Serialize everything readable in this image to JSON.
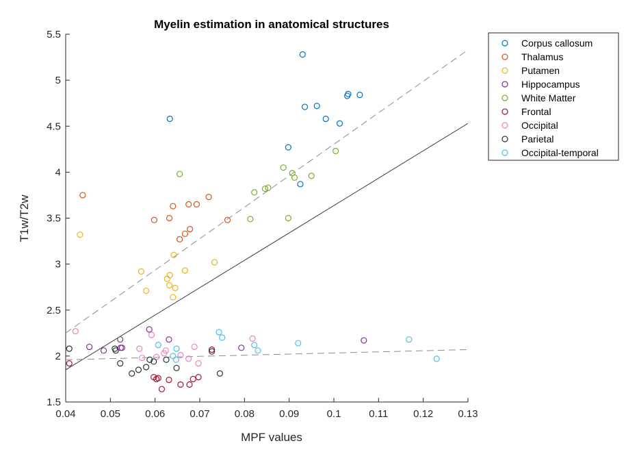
{
  "chart_data": {
    "type": "scatter",
    "title": "Myelin estimation in anatomical structures",
    "xlabel": "MPF values",
    "ylabel": "T1w/T2w",
    "xlim": [
      0.04,
      0.13
    ],
    "ylim": [
      1.5,
      5.5
    ],
    "xticks": [
      "0.04",
      "0.05",
      "0.06",
      "0.07",
      "0.08",
      "0.09",
      "0.1",
      "0.11",
      "0.12",
      "0.13"
    ],
    "yticks": [
      "1.5",
      "2",
      "2.5",
      "3",
      "3.5",
      "4",
      "4.5",
      "5",
      "5.5"
    ],
    "grid": false,
    "legend_position": "outside-top-right",
    "series": [
      {
        "name": "Corpus callosum",
        "color": "#0072BD",
        "points": [
          [
            0.0633,
            4.58
          ],
          [
            0.093,
            5.28
          ],
          [
            0.0898,
            4.27
          ],
          [
            0.0925,
            3.87
          ],
          [
            0.0935,
            4.71
          ],
          [
            0.0962,
            4.72
          ],
          [
            0.0982,
            4.58
          ],
          [
            0.1013,
            4.53
          ],
          [
            0.103,
            4.83
          ],
          [
            0.1032,
            4.85
          ],
          [
            0.1058,
            4.84
          ]
        ]
      },
      {
        "name": "Thalamus",
        "color": "#D95319",
        "points": [
          [
            0.0438,
            3.75
          ],
          [
            0.0598,
            3.48
          ],
          [
            0.0632,
            3.5
          ],
          [
            0.064,
            3.63
          ],
          [
            0.0655,
            3.27
          ],
          [
            0.0667,
            3.33
          ],
          [
            0.0675,
            3.65
          ],
          [
            0.0678,
            3.38
          ],
          [
            0.0693,
            3.65
          ],
          [
            0.072,
            3.73
          ],
          [
            0.0762,
            3.48
          ]
        ]
      },
      {
        "name": "Putamen",
        "color": "#EDB120",
        "points": [
          [
            0.0432,
            3.32
          ],
          [
            0.0569,
            2.92
          ],
          [
            0.058,
            2.71
          ],
          [
            0.0627,
            2.84
          ],
          [
            0.0632,
            2.77
          ],
          [
            0.0633,
            2.88
          ],
          [
            0.064,
            2.64
          ],
          [
            0.0642,
            3.1
          ],
          [
            0.0645,
            2.74
          ],
          [
            0.0667,
            2.93
          ],
          [
            0.0733,
            3.02
          ]
        ]
      },
      {
        "name": "Hippocampus",
        "color": "#7E2F8E",
        "points": [
          [
            0.0453,
            2.1
          ],
          [
            0.0485,
            2.06
          ],
          [
            0.0522,
            2.18
          ],
          [
            0.0523,
            2.09
          ],
          [
            0.0526,
            2.09
          ],
          [
            0.0587,
            2.29
          ],
          [
            0.0631,
            2.18
          ],
          [
            0.0793,
            2.09
          ],
          [
            0.1067,
            2.17
          ]
        ]
      },
      {
        "name": "White Matter",
        "color": "#77AC30",
        "points": [
          [
            0.0655,
            3.98
          ],
          [
            0.0813,
            3.49
          ],
          [
            0.0822,
            3.78
          ],
          [
            0.0846,
            3.82
          ],
          [
            0.0853,
            3.83
          ],
          [
            0.0887,
            4.05
          ],
          [
            0.0898,
            3.5
          ],
          [
            0.0907,
            3.99
          ],
          [
            0.0912,
            3.94
          ],
          [
            0.095,
            3.96
          ],
          [
            0.1004,
            4.23
          ]
        ]
      },
      {
        "name": "Frontal",
        "color": "#A2142F",
        "points": [
          [
            0.0408,
            1.92
          ],
          [
            0.0597,
            1.77
          ],
          [
            0.0603,
            1.75
          ],
          [
            0.0607,
            1.76
          ],
          [
            0.0615,
            1.64
          ],
          [
            0.0631,
            1.74
          ],
          [
            0.0657,
            1.69
          ],
          [
            0.0677,
            1.69
          ],
          [
            0.0685,
            1.75
          ],
          [
            0.0697,
            1.77
          ],
          [
            0.0727,
            2.07
          ]
        ]
      },
      {
        "name": "Occipital",
        "color": "#F07FC4",
        "points": [
          [
            0.0422,
            2.27
          ],
          [
            0.0565,
            2.08
          ],
          [
            0.0571,
            1.98
          ],
          [
            0.0592,
            2.23
          ],
          [
            0.0603,
            1.99
          ],
          [
            0.062,
            2.03
          ],
          [
            0.0624,
            2.06
          ],
          [
            0.0657,
            2.01
          ],
          [
            0.0675,
            1.97
          ],
          [
            0.0688,
            2.1
          ],
          [
            0.0697,
            1.92
          ],
          [
            0.0818,
            2.19
          ]
        ]
      },
      {
        "name": "Parietal",
        "color": "#23362E",
        "points": [
          [
            0.0408,
            2.08
          ],
          [
            0.051,
            2.08
          ],
          [
            0.0512,
            2.06
          ],
          [
            0.0522,
            1.92
          ],
          [
            0.0548,
            1.81
          ],
          [
            0.0563,
            1.85
          ],
          [
            0.058,
            1.88
          ],
          [
            0.0588,
            1.96
          ],
          [
            0.0597,
            1.94
          ],
          [
            0.0625,
            1.96
          ],
          [
            0.0648,
            1.87
          ],
          [
            0.0727,
            2.05
          ],
          [
            0.0745,
            1.81
          ]
        ]
      },
      {
        "name": "Occipital-temporal",
        "color": "#4DBEEE",
        "points": [
          [
            0.0607,
            2.12
          ],
          [
            0.064,
            2.0
          ],
          [
            0.0647,
            1.96
          ],
          [
            0.0648,
            2.08
          ],
          [
            0.0743,
            2.26
          ],
          [
            0.075,
            2.2
          ],
          [
            0.0822,
            2.12
          ],
          [
            0.083,
            2.06
          ],
          [
            0.092,
            2.14
          ],
          [
            0.1168,
            2.18
          ],
          [
            0.123,
            1.97
          ]
        ]
      }
    ],
    "reference_lines": [
      {
        "name": "upper-fit",
        "style": "dashed",
        "color": "#8c8c8c",
        "points": [
          [
            0.04,
            2.25
          ],
          [
            0.13,
            5.33
          ]
        ]
      },
      {
        "name": "identity-fit",
        "style": "solid",
        "color": "#3a3a3a",
        "points": [
          [
            0.04,
            1.85
          ],
          [
            0.13,
            4.53
          ]
        ]
      },
      {
        "name": "lower-fit",
        "style": "dashed",
        "color": "#8c8c8c",
        "points": [
          [
            0.04,
            1.96
          ],
          [
            0.13,
            2.07
          ]
        ]
      }
    ]
  }
}
